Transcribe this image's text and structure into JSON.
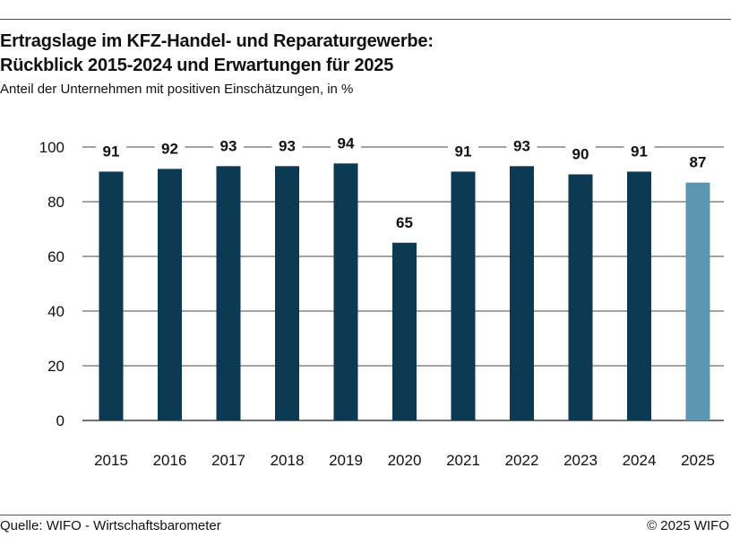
{
  "header": {
    "title_line1": "Ertragslage im KFZ-Handel- und Reparaturgewerbe:",
    "title_line2": "Rückblick 2015-2024 und Erwartungen für 2025",
    "subtitle": "Anteil der Unternehmen mit positiven Einschätzungen, in %"
  },
  "footer": {
    "source": "Quelle: WIFO - Wirtschaftsbarometer",
    "copyright": "© 2025 WIFO"
  },
  "colors": {
    "actual": "#0b3a52",
    "expectation": "#5a97ae",
    "grid": "#444444",
    "label": "#111111"
  },
  "chart_data": {
    "type": "bar",
    "title": "Ertragslage im KFZ-Handel- und Reparaturgewerbe: Rückblick 2015-2024 und Erwartungen für 2025",
    "subtitle": "Anteil der Unternehmen mit positiven Einschätzungen, in %",
    "xlabel": "",
    "ylabel": "",
    "categories": [
      "2015",
      "2016",
      "2017",
      "2018",
      "2019",
      "2020",
      "2021",
      "2022",
      "2023",
      "2024",
      "2025"
    ],
    "values": [
      91,
      92,
      93,
      93,
      94,
      65,
      91,
      93,
      90,
      91,
      87
    ],
    "data_labels": [
      "91",
      "92",
      "93",
      "93",
      "94",
      "65",
      "91",
      "93",
      "90",
      "91",
      "87"
    ],
    "highlight_category": "2025",
    "ylim": [
      0,
      100
    ],
    "yticks": [
      0,
      20,
      40,
      60,
      80,
      100
    ],
    "ytick_labels": [
      "0",
      "20",
      "40",
      "60",
      "80",
      "100"
    ],
    "grid": true,
    "legend": "none"
  }
}
